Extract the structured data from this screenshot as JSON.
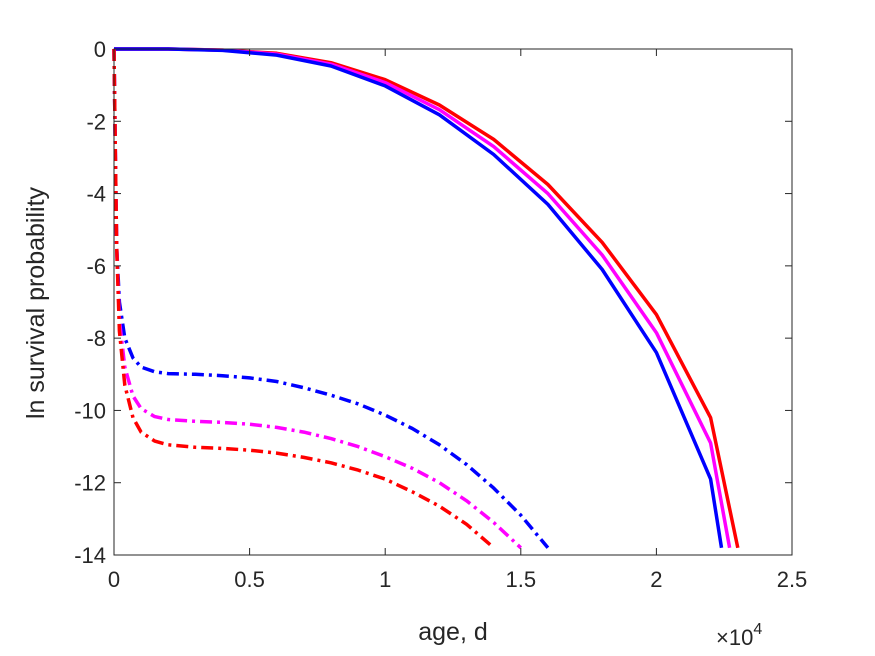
{
  "chart_data": {
    "type": "line",
    "title": "",
    "xlabel": "age, d",
    "ylabel": "ln survival probability",
    "x_exponent_label": "×10",
    "x_exponent_power": "4",
    "xlim": [
      0,
      2.5
    ],
    "ylim": [
      -14,
      0
    ],
    "xticks": [
      0,
      0.5,
      1,
      1.5,
      2,
      2.5
    ],
    "xtick_labels": [
      "0",
      "0.5",
      "1",
      "1.5",
      "2",
      "2.5"
    ],
    "yticks": [
      0,
      -2,
      -4,
      -6,
      -8,
      -10,
      -12,
      -14
    ],
    "ytick_labels": [
      "0",
      "-2",
      "-4",
      "-6",
      "-8",
      "-10",
      "-12",
      "-14"
    ],
    "grid": false,
    "series": [
      {
        "color": "#ff0000",
        "dash": "solid",
        "points": [
          [
            0,
            0
          ],
          [
            0.2,
            0
          ],
          [
            0.4,
            -0.03
          ],
          [
            0.6,
            -0.12
          ],
          [
            0.8,
            -0.38
          ],
          [
            1.0,
            -0.85
          ],
          [
            1.2,
            -1.55
          ],
          [
            1.4,
            -2.5
          ],
          [
            1.6,
            -3.75
          ],
          [
            1.8,
            -5.35
          ],
          [
            2.0,
            -7.35
          ],
          [
            2.2,
            -10.2
          ],
          [
            2.3,
            -13.8
          ]
        ]
      },
      {
        "color": "#ff00ff",
        "dash": "solid",
        "points": [
          [
            0,
            0
          ],
          [
            0.2,
            0
          ],
          [
            0.4,
            -0.03
          ],
          [
            0.6,
            -0.14
          ],
          [
            0.8,
            -0.42
          ],
          [
            1.0,
            -0.93
          ],
          [
            1.2,
            -1.68
          ],
          [
            1.4,
            -2.7
          ],
          [
            1.6,
            -4.0
          ],
          [
            1.8,
            -5.7
          ],
          [
            2.0,
            -7.85
          ],
          [
            2.2,
            -10.9
          ],
          [
            2.27,
            -13.8
          ]
        ]
      },
      {
        "color": "#0000ff",
        "dash": "solid",
        "points": [
          [
            0,
            0
          ],
          [
            0.2,
            0
          ],
          [
            0.4,
            -0.04
          ],
          [
            0.6,
            -0.17
          ],
          [
            0.8,
            -0.47
          ],
          [
            1.0,
            -1.02
          ],
          [
            1.2,
            -1.82
          ],
          [
            1.4,
            -2.92
          ],
          [
            1.6,
            -4.3
          ],
          [
            1.8,
            -6.1
          ],
          [
            2.0,
            -8.4
          ],
          [
            2.2,
            -11.9
          ],
          [
            2.24,
            -13.8
          ]
        ]
      },
      {
        "color": "#0000ff",
        "dash": "dashdot",
        "points": [
          [
            0,
            0
          ],
          [
            0.005,
            -3.0
          ],
          [
            0.01,
            -5.5
          ],
          [
            0.02,
            -7.0
          ],
          [
            0.04,
            -8.0
          ],
          [
            0.07,
            -8.55
          ],
          [
            0.1,
            -8.8
          ],
          [
            0.15,
            -8.93
          ],
          [
            0.2,
            -8.98
          ],
          [
            0.3,
            -9.0
          ],
          [
            0.4,
            -9.04
          ],
          [
            0.5,
            -9.1
          ],
          [
            0.6,
            -9.2
          ],
          [
            0.7,
            -9.37
          ],
          [
            0.8,
            -9.58
          ],
          [
            0.9,
            -9.82
          ],
          [
            1.0,
            -10.13
          ],
          [
            1.1,
            -10.5
          ],
          [
            1.2,
            -10.95
          ],
          [
            1.3,
            -11.5
          ],
          [
            1.4,
            -12.15
          ],
          [
            1.5,
            -12.9
          ],
          [
            1.6,
            -13.8
          ]
        ]
      },
      {
        "color": "#ff00ff",
        "dash": "dashdot",
        "points": [
          [
            0,
            0
          ],
          [
            0.005,
            -3.0
          ],
          [
            0.01,
            -5.5
          ],
          [
            0.02,
            -7.5
          ],
          [
            0.04,
            -8.8
          ],
          [
            0.07,
            -9.6
          ],
          [
            0.1,
            -9.95
          ],
          [
            0.15,
            -10.17
          ],
          [
            0.2,
            -10.25
          ],
          [
            0.3,
            -10.3
          ],
          [
            0.4,
            -10.33
          ],
          [
            0.5,
            -10.38
          ],
          [
            0.6,
            -10.47
          ],
          [
            0.7,
            -10.6
          ],
          [
            0.8,
            -10.78
          ],
          [
            0.9,
            -11.0
          ],
          [
            1.0,
            -11.28
          ],
          [
            1.1,
            -11.6
          ],
          [
            1.2,
            -12.0
          ],
          [
            1.3,
            -12.5
          ],
          [
            1.4,
            -13.1
          ],
          [
            1.5,
            -13.8
          ]
        ]
      },
      {
        "color": "#ff0000",
        "dash": "dashdot",
        "points": [
          [
            0,
            0
          ],
          [
            0.005,
            -3.0
          ],
          [
            0.01,
            -5.5
          ],
          [
            0.02,
            -7.8
          ],
          [
            0.04,
            -9.3
          ],
          [
            0.07,
            -10.2
          ],
          [
            0.1,
            -10.6
          ],
          [
            0.15,
            -10.85
          ],
          [
            0.2,
            -10.95
          ],
          [
            0.3,
            -11.02
          ],
          [
            0.4,
            -11.05
          ],
          [
            0.5,
            -11.1
          ],
          [
            0.6,
            -11.18
          ],
          [
            0.7,
            -11.3
          ],
          [
            0.8,
            -11.45
          ],
          [
            0.9,
            -11.65
          ],
          [
            1.0,
            -11.9
          ],
          [
            1.1,
            -12.25
          ],
          [
            1.2,
            -12.65
          ],
          [
            1.3,
            -13.15
          ],
          [
            1.4,
            -13.8
          ]
        ]
      }
    ]
  }
}
